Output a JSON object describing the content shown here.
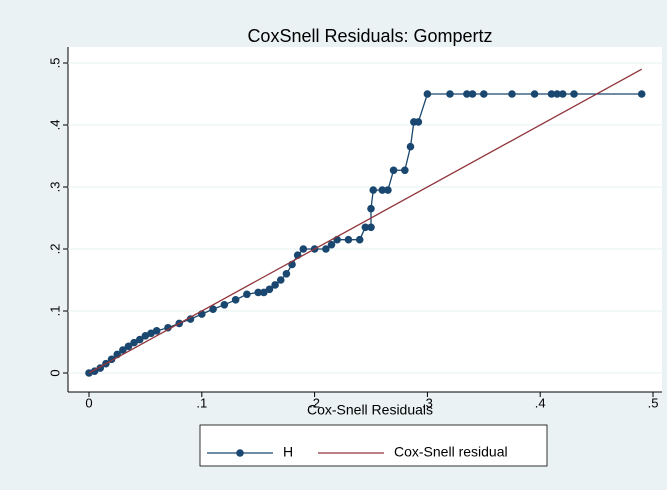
{
  "chart_data": {
    "type": "line",
    "title": "CoxSnell Residuals: Gompertz",
    "x_label": "Cox-Snell Residuals",
    "xlim": [
      0,
      0.5
    ],
    "ylim": [
      0,
      0.5
    ],
    "xticks": [
      0,
      {
        "value": 0.1,
        "label": ".1"
      },
      {
        "value": 0.2,
        "label": ".2"
      },
      {
        "value": 0.3,
        "label": ".3"
      },
      {
        "value": 0.4,
        "label": ".4"
      },
      {
        "value": 0.5,
        "label": ".5"
      }
    ],
    "yticks": [
      0,
      {
        "value": 0.1,
        "label": ".1"
      },
      {
        "value": 0.2,
        "label": ".2"
      },
      {
        "value": 0.3,
        "label": ".3"
      },
      {
        "value": 0.4,
        "label": ".4"
      },
      {
        "value": 0.5,
        "label": ".5"
      }
    ],
    "grid": true,
    "series": [
      {
        "name": "H",
        "color": "#1a476f",
        "markers": true,
        "x": [
          0,
          0.005,
          0.01,
          0.015,
          0.02,
          0.025,
          0.03,
          0.035,
          0.04,
          0.045,
          0.05,
          0.055,
          0.06,
          0.07,
          0.08,
          0.09,
          0.1,
          0.11,
          0.12,
          0.13,
          0.14,
          0.15,
          0.155,
          0.16,
          0.165,
          0.17,
          0.175,
          0.18,
          0.185,
          0.19,
          0.2,
          0.21,
          0.215,
          0.22,
          0.23,
          0.24,
          0.245,
          0.25,
          0.25,
          0.252,
          0.26,
          0.265,
          0.27,
          0.28,
          0.285,
          0.288,
          0.292,
          0.3,
          0.32,
          0.335,
          0.34,
          0.35,
          0.375,
          0.395,
          0.41,
          0.415,
          0.42,
          0.43,
          0.49
        ],
        "values": [
          0,
          0.003,
          0.008,
          0.015,
          0.022,
          0.03,
          0.037,
          0.043,
          0.049,
          0.054,
          0.06,
          0.064,
          0.068,
          0.073,
          0.08,
          0.087,
          0.095,
          0.103,
          0.11,
          0.118,
          0.127,
          0.13,
          0.13,
          0.135,
          0.142,
          0.15,
          0.16,
          0.175,
          0.19,
          0.2,
          0.2,
          0.2,
          0.207,
          0.215,
          0.215,
          0.215,
          0.235,
          0.235,
          0.265,
          0.295,
          0.295,
          0.295,
          0.327,
          0.327,
          0.365,
          0.405,
          0.405,
          0.45,
          0.45,
          0.45,
          0.45,
          0.45,
          0.45,
          0.45,
          0.45,
          0.45,
          0.45,
          0.45,
          0.45
        ]
      },
      {
        "name": "Cox-Snell residual",
        "color": "#90353b",
        "markers": false,
        "x": [
          0,
          0.49
        ],
        "values": [
          0,
          0.49
        ]
      }
    ]
  }
}
